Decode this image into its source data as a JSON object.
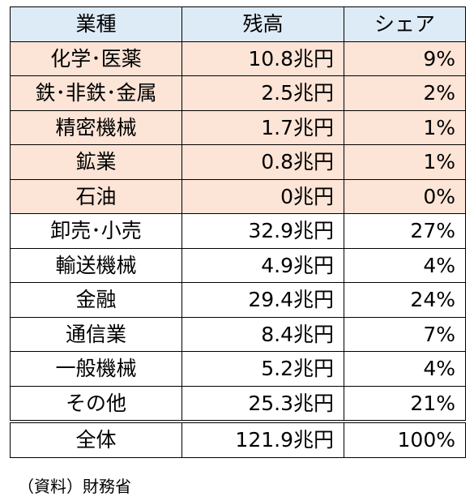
{
  "table": {
    "headers": [
      "業種",
      "残高",
      "シェア"
    ],
    "rows": [
      {
        "name": "化学･医薬",
        "balance": "10.8兆円",
        "share": "9%",
        "highlight": true
      },
      {
        "name": "鉄･非鉄･金属",
        "balance": "2.5兆円",
        "share": "2%",
        "highlight": true
      },
      {
        "name": "精密機械",
        "balance": "1.7兆円",
        "share": "1%",
        "highlight": true
      },
      {
        "name": "鉱業",
        "balance": "0.8兆円",
        "share": "1%",
        "highlight": true
      },
      {
        "name": "石油",
        "balance": "0兆円",
        "share": "0%",
        "highlight": true
      },
      {
        "name": "卸売･小売",
        "balance": "32.9兆円",
        "share": "27%",
        "highlight": false
      },
      {
        "name": "輸送機械",
        "balance": "4.9兆円",
        "share": "4%",
        "highlight": false
      },
      {
        "name": "金融",
        "balance": "29.4兆円",
        "share": "24%",
        "highlight": false
      },
      {
        "name": "通信業",
        "balance": "8.4兆円",
        "share": "7%",
        "highlight": false
      },
      {
        "name": "一般機械",
        "balance": "5.2兆円",
        "share": "4%",
        "highlight": false
      },
      {
        "name": "その他",
        "balance": "25.3兆円",
        "share": "21%",
        "highlight": false
      }
    ],
    "total": {
      "name": "全体",
      "balance": "121.9兆円",
      "share": "100%"
    }
  },
  "source": "（資料）財務省",
  "colors": {
    "header_bg": "#ddebf7",
    "highlight_bg": "#fce4d6"
  }
}
